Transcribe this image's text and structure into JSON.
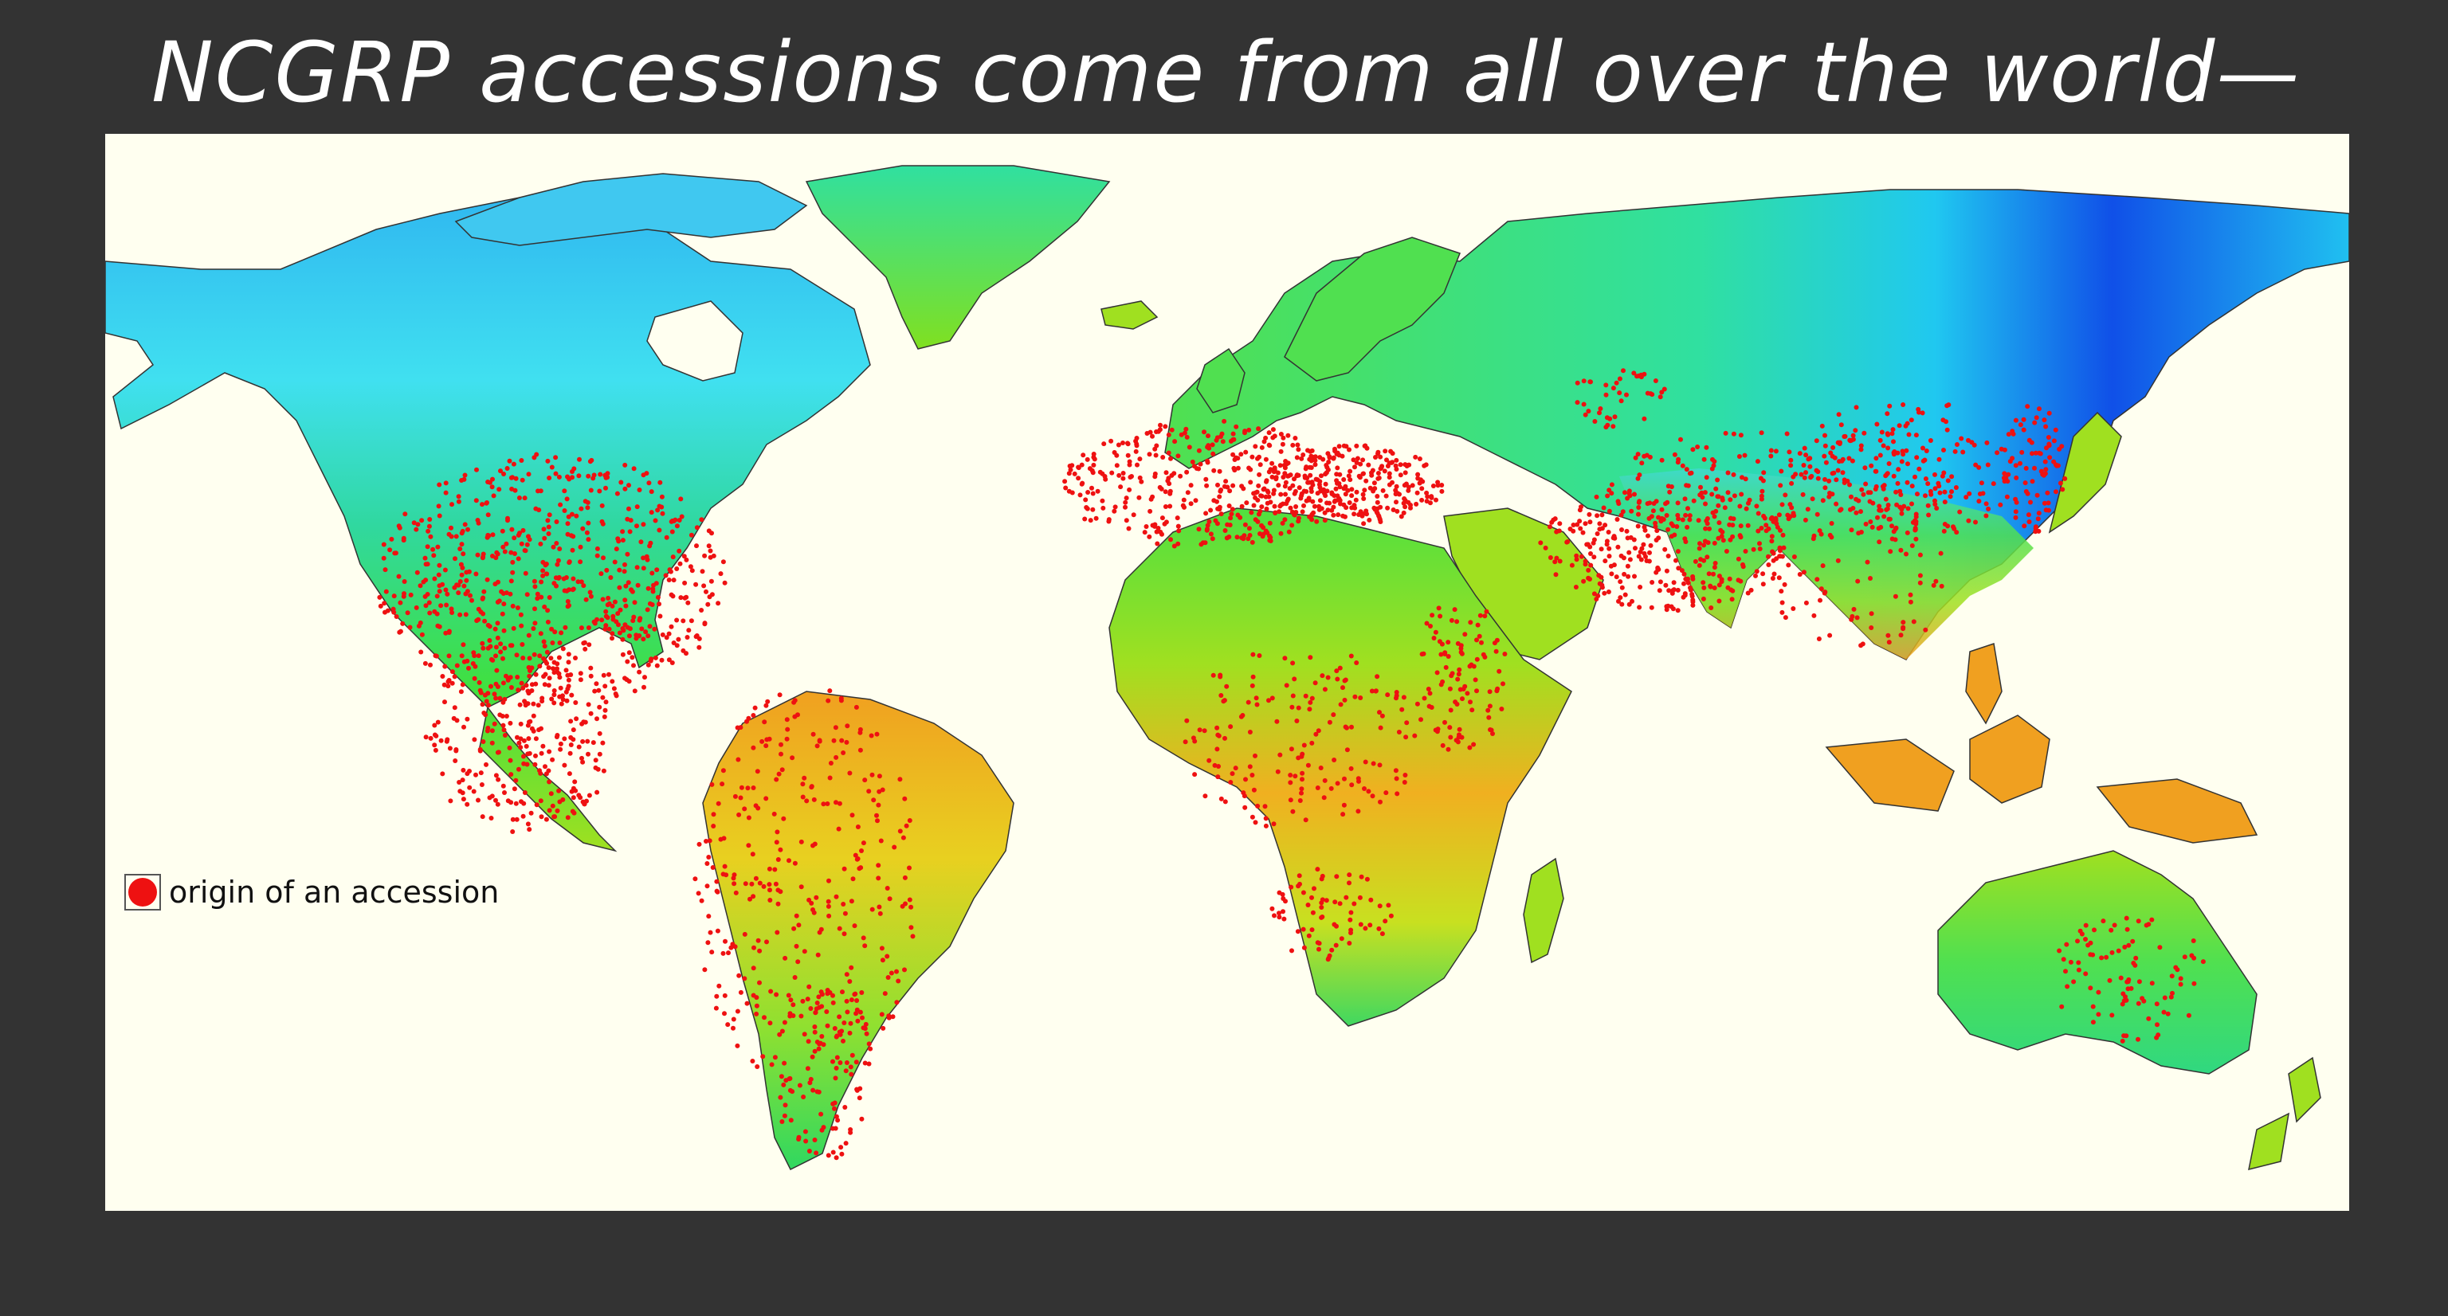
{
  "slide": {
    "title": "NCGRP accessions come from all over the world—"
  },
  "map": {
    "legend": {
      "label": "origin of an accession",
      "marker_color": "#ee1111"
    },
    "colors": {
      "ocean": "#fffff0",
      "frame": "#333333",
      "cold": "#1030e0",
      "cool": "#20e0f0",
      "temperate": "#30e060",
      "warm": "#a0e020",
      "hot": "#f0a020"
    }
  }
}
